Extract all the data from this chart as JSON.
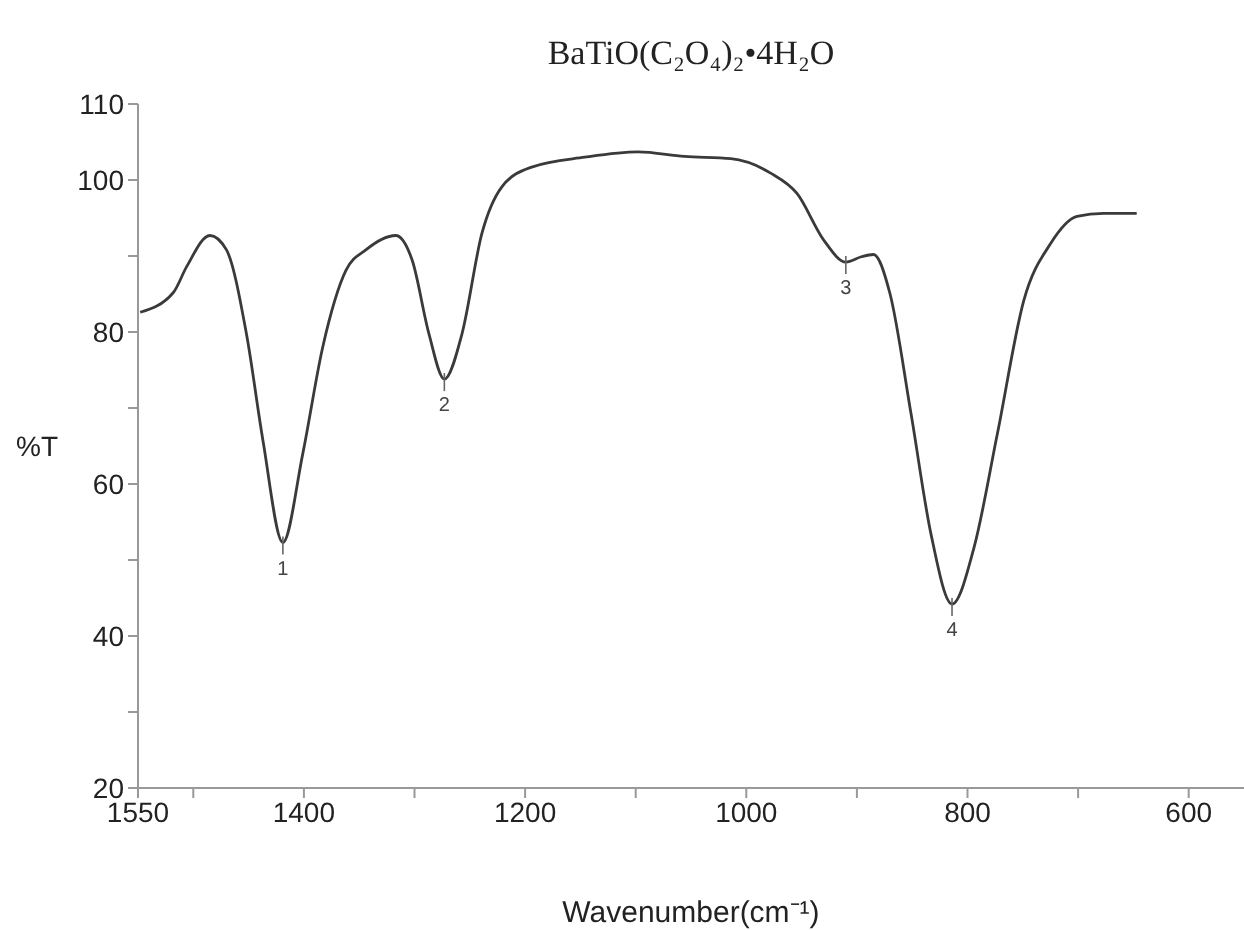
{
  "chart_data": {
    "type": "line",
    "title": "BaTiO(C₂O₄)₂•4H₂O",
    "xlabel": "Wavenumber(cm⁻¹)",
    "ylabel": "%T",
    "x": [
      1548,
      1518,
      1506,
      1485,
      1470,
      1452,
      1437,
      1419,
      1401,
      1383,
      1362,
      1344,
      1317,
      1302,
      1287,
      1273,
      1257,
      1239,
      1221,
      1194,
      1146,
      1098,
      1056,
      1014,
      978,
      954,
      930,
      910,
      896,
      885,
      870,
      851,
      833,
      814,
      794,
      773,
      749,
      725,
      701,
      677,
      647
    ],
    "series": [
      {
        "color": "#3a3a3a",
        "values": [
          82.6,
          85.2,
          88.6,
          92.7,
          90.8,
          79.8,
          65.7,
          52.3,
          64,
          78,
          88.1,
          90.8,
          92.7,
          89.4,
          79.8,
          73.8,
          79.8,
          93,
          99.1,
          101.7,
          103,
          103.7,
          103.1,
          102.8,
          100.9,
          98.2,
          92.1,
          89.2,
          89.9,
          90.2,
          85,
          69.2,
          53.4,
          44.2,
          51.7,
          66.6,
          84.2,
          91.6,
          95.2,
          95.6,
          95.6
        ]
      }
    ],
    "xlim": [
      1550,
      550
    ],
    "xticks": [
      1550,
      {
        "value": 1500,
        "label": null
      },
      1400,
      {
        "value": 1300,
        "label": null
      },
      1200,
      {
        "value": 1100,
        "label": null
      },
      1000,
      {
        "value": 900,
        "label": null
      },
      800,
      {
        "value": 700,
        "label": null
      },
      600
    ],
    "ylim": [
      20,
      110
    ],
    "yticks": [
      20,
      {
        "value": 30,
        "label": null
      },
      40,
      {
        "value": 50,
        "label": null
      },
      60,
      {
        "value": 70,
        "label": null
      },
      80,
      {
        "value": 90,
        "label": null
      },
      100,
      110
    ],
    "annotations": [
      {
        "text": "1",
        "x": 1419,
        "y": 52.3
      },
      {
        "text": "2",
        "x": 1273,
        "y": 73.8
      },
      {
        "text": "3",
        "x": 910,
        "y": 89.2
      },
      {
        "text": "4",
        "x": 814,
        "y": 44.2
      }
    ],
    "grid": false,
    "legend": false,
    "marker": "none",
    "line_style": "solid"
  }
}
